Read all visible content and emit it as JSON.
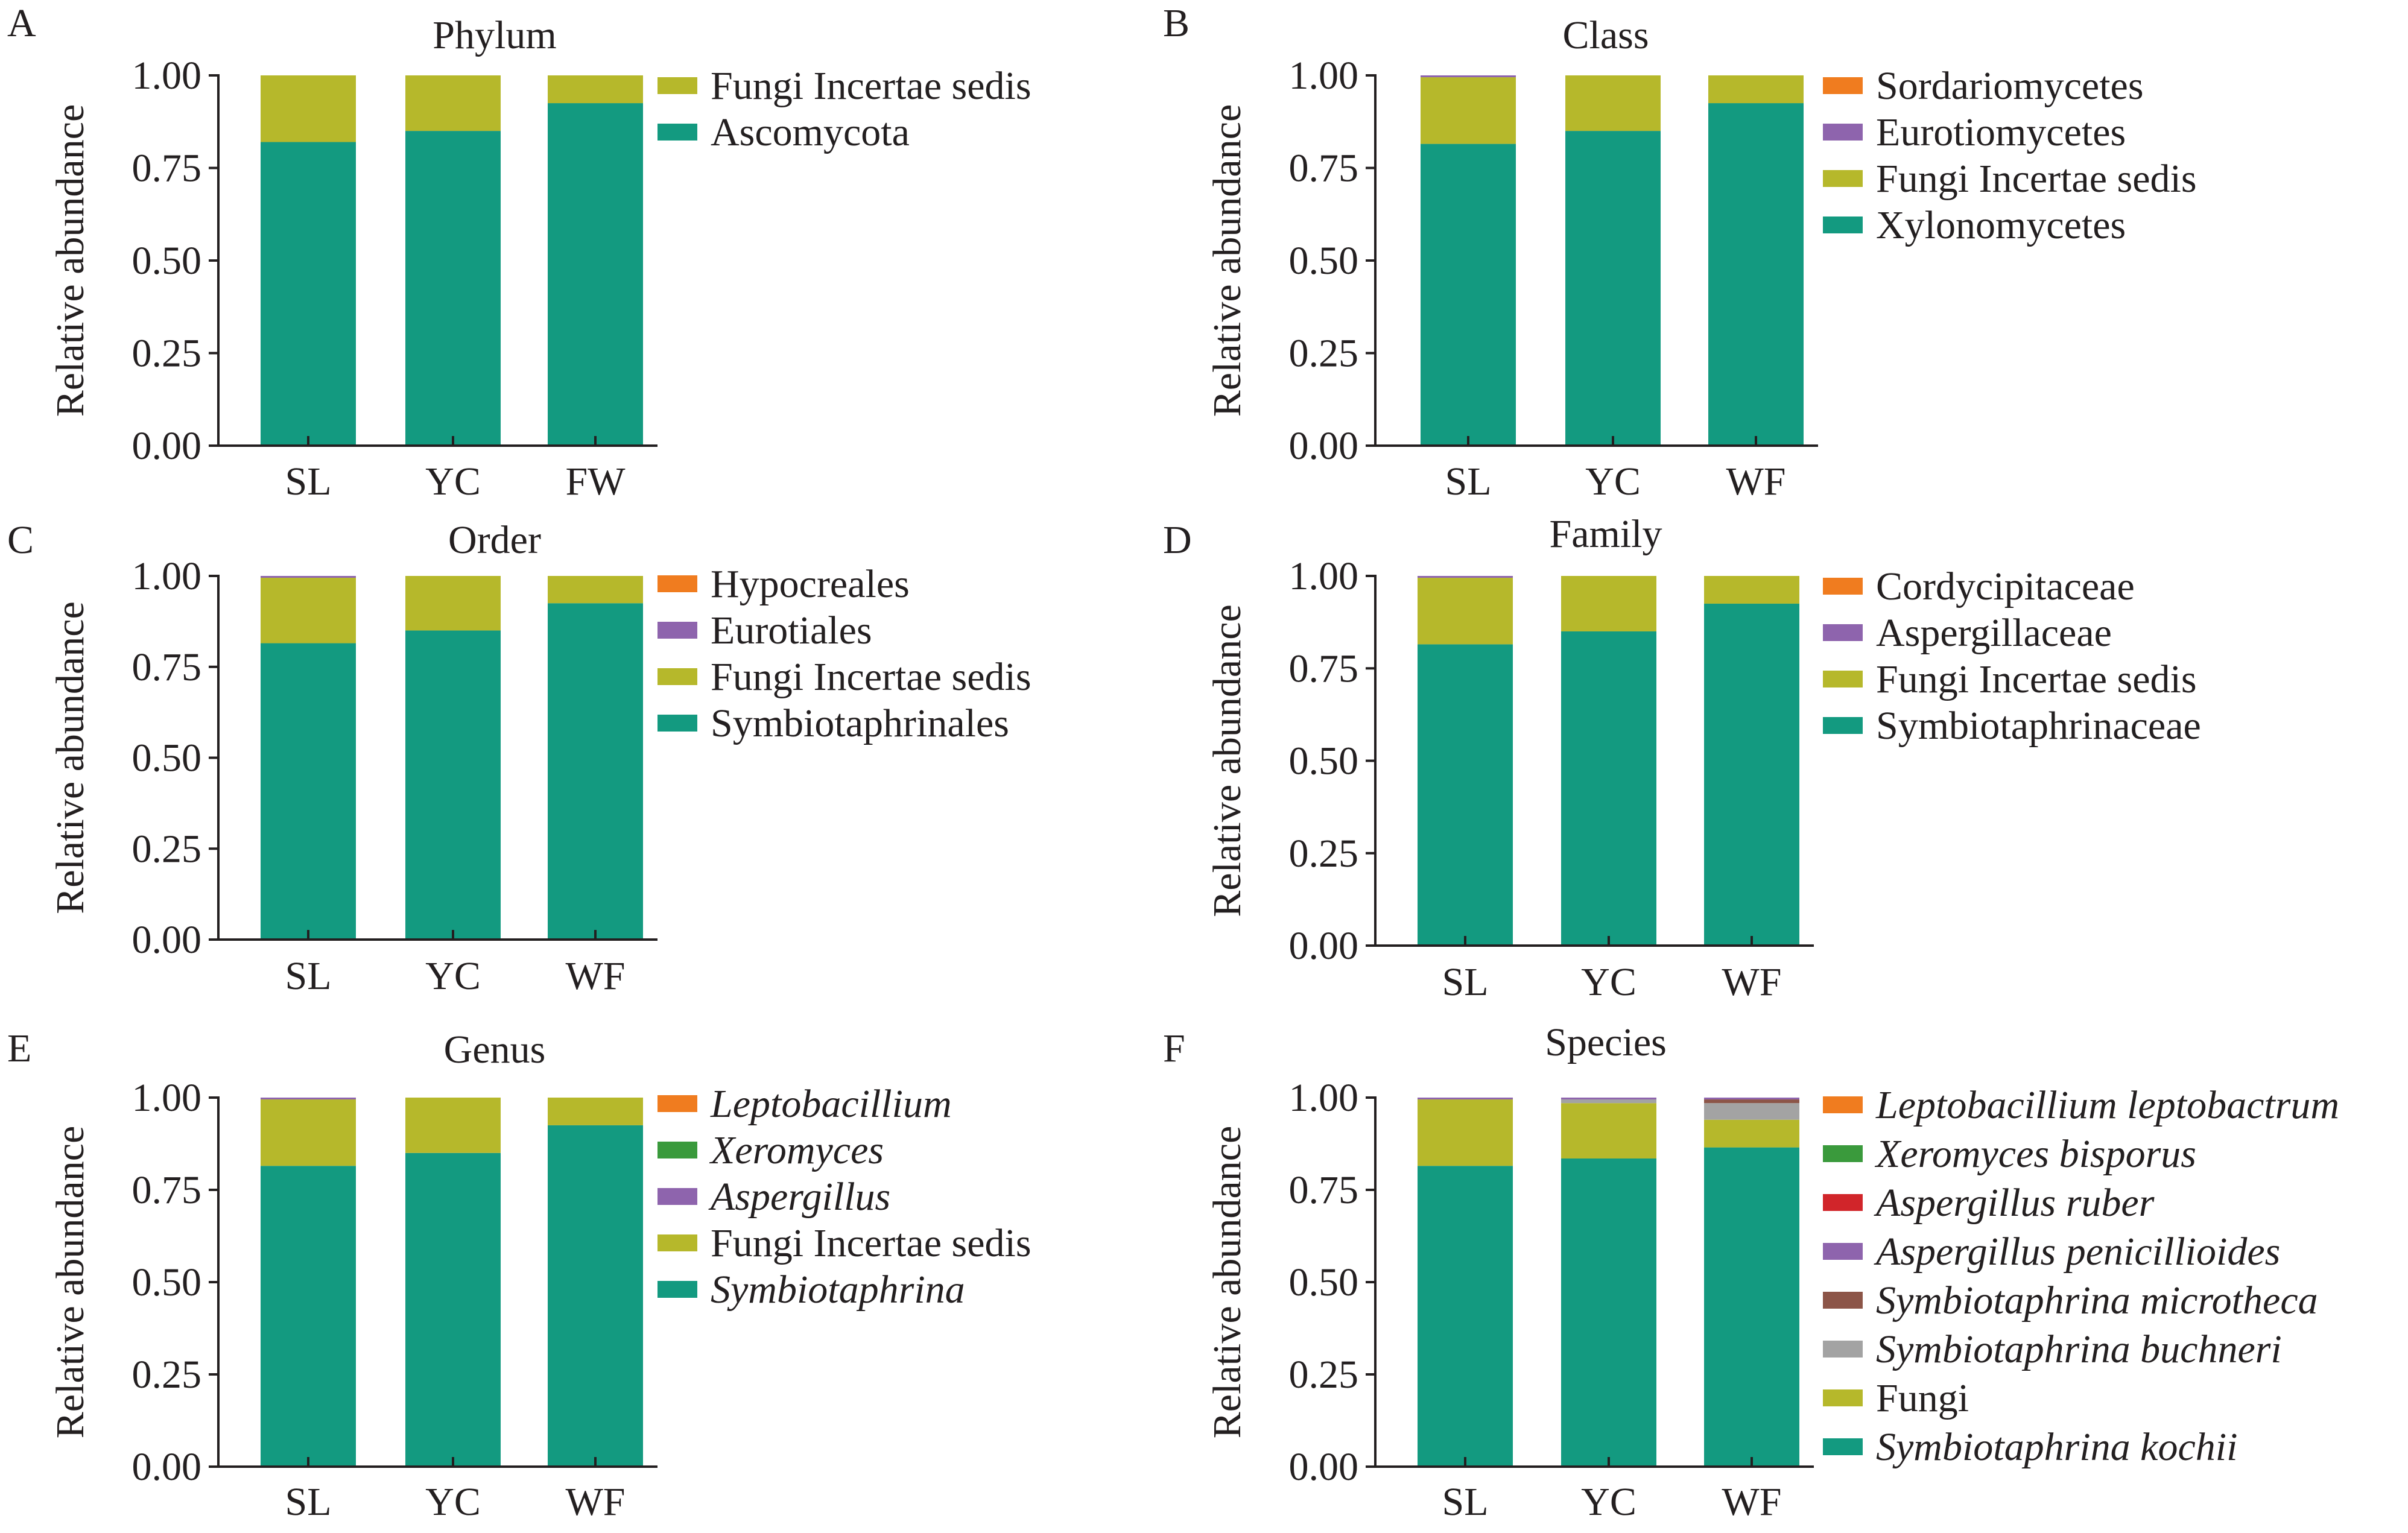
{
  "colors": {
    "teal": "#139a80",
    "olive": "#b6b82b",
    "purple": "#8e64ad",
    "orange": "#f07c1f",
    "green": "#3a9a3c",
    "red": "#d1252a",
    "brown": "#8c5548",
    "grey": "#a3a3a3"
  },
  "chart_data": [
    {
      "panel": "A",
      "type": "bar",
      "stacked": true,
      "title": "Phylum",
      "ylabel": "Relative abundance",
      "xlabel": "",
      "ylim": [
        0,
        1
      ],
      "yticks": [
        "0.00",
        "0.25",
        "0.50",
        "0.75",
        "1.00"
      ],
      "categories": [
        "SL",
        "YC",
        "FW"
      ],
      "legend_position": "right",
      "series": [
        {
          "name": "Ascomycota",
          "color": "#139a80",
          "italic": false,
          "values": [
            0.82,
            0.85,
            0.925
          ]
        },
        {
          "name": "Fungi Incertae sedis",
          "color": "#b6b82b",
          "italic": false,
          "values": [
            0.18,
            0.15,
            0.075
          ]
        }
      ]
    },
    {
      "panel": "B",
      "type": "bar",
      "stacked": true,
      "title": "Class",
      "ylabel": "Relative abundance",
      "xlabel": "",
      "ylim": [
        0,
        1
      ],
      "yticks": [
        "0.00",
        "0.25",
        "0.50",
        "0.75",
        "1.00"
      ],
      "categories": [
        "SL",
        "YC",
        "WF"
      ],
      "legend_position": "right",
      "series": [
        {
          "name": "Xylonomycetes",
          "color": "#139a80",
          "italic": false,
          "values": [
            0.815,
            0.85,
            0.925
          ]
        },
        {
          "name": "Fungi Incertae sedis",
          "color": "#b6b82b",
          "italic": false,
          "values": [
            0.18,
            0.15,
            0.075
          ]
        },
        {
          "name": "Eurotiomycetes",
          "color": "#8e64ad",
          "italic": false,
          "values": [
            0.005,
            0.0,
            0.0
          ]
        },
        {
          "name": "Sordariomycetes",
          "color": "#f07c1f",
          "italic": false,
          "values": [
            0.0,
            0.0,
            0.0
          ]
        }
      ]
    },
    {
      "panel": "C",
      "type": "bar",
      "stacked": true,
      "title": "Order",
      "ylabel": "Relative abundance",
      "xlabel": "",
      "ylim": [
        0,
        1
      ],
      "yticks": [
        "0.00",
        "0.25",
        "0.50",
        "0.75",
        "1.00"
      ],
      "categories": [
        "SL",
        "YC",
        "WF"
      ],
      "legend_position": "right",
      "series": [
        {
          "name": "Symbiotaphrinales",
          "color": "#139a80",
          "italic": false,
          "values": [
            0.815,
            0.85,
            0.925
          ]
        },
        {
          "name": "Fungi Incertae sedis",
          "color": "#b6b82b",
          "italic": false,
          "values": [
            0.18,
            0.15,
            0.075
          ]
        },
        {
          "name": "Eurotiales",
          "color": "#8e64ad",
          "italic": false,
          "values": [
            0.005,
            0.0,
            0.0
          ]
        },
        {
          "name": "Hypocreales",
          "color": "#f07c1f",
          "italic": false,
          "values": [
            0.0,
            0.0,
            0.0
          ]
        }
      ]
    },
    {
      "panel": "D",
      "type": "bar",
      "stacked": true,
      "title": "Family",
      "ylabel": "Relative abundance",
      "xlabel": "",
      "ylim": [
        0,
        1
      ],
      "yticks": [
        "0.00",
        "0.25",
        "0.50",
        "0.75",
        "1.00"
      ],
      "categories": [
        "SL",
        "YC",
        "WF"
      ],
      "legend_position": "right",
      "series": [
        {
          "name": "Symbiotaphrinaceae",
          "color": "#139a80",
          "italic": false,
          "values": [
            0.815,
            0.85,
            0.925
          ]
        },
        {
          "name": "Fungi Incertae sedis",
          "color": "#b6b82b",
          "italic": false,
          "values": [
            0.18,
            0.15,
            0.075
          ]
        },
        {
          "name": "Aspergillaceae",
          "color": "#8e64ad",
          "italic": false,
          "values": [
            0.005,
            0.0,
            0.0
          ]
        },
        {
          "name": "Cordycipitaceae",
          "color": "#f07c1f",
          "italic": false,
          "values": [
            0.0,
            0.0,
            0.0
          ]
        }
      ]
    },
    {
      "panel": "E",
      "type": "bar",
      "stacked": true,
      "title": "Genus",
      "ylabel": "Relative abundance",
      "xlabel": "",
      "ylim": [
        0,
        1
      ],
      "yticks": [
        "0.00",
        "0.25",
        "0.50",
        "0.75",
        "1.00"
      ],
      "categories": [
        "SL",
        "YC",
        "WF"
      ],
      "legend_position": "right",
      "series": [
        {
          "name": "Symbiotaphrina",
          "color": "#139a80",
          "italic": true,
          "values": [
            0.815,
            0.85,
            0.925
          ]
        },
        {
          "name": "Fungi Incertae sedis",
          "color": "#b6b82b",
          "italic": false,
          "values": [
            0.18,
            0.15,
            0.075
          ]
        },
        {
          "name": "Aspergillus",
          "color": "#8e64ad",
          "italic": true,
          "values": [
            0.005,
            0.0,
            0.0
          ]
        },
        {
          "name": "Xeromyces",
          "color": "#3a9a3c",
          "italic": true,
          "values": [
            0.0,
            0.0,
            0.0
          ]
        },
        {
          "name": "Leptobacillium",
          "color": "#f07c1f",
          "italic": true,
          "values": [
            0.0,
            0.0,
            0.0
          ]
        }
      ]
    },
    {
      "panel": "F",
      "type": "bar",
      "stacked": true,
      "title": "Species",
      "ylabel": "Relative abundance",
      "xlabel": "",
      "ylim": [
        0,
        1
      ],
      "yticks": [
        "0.00",
        "0.25",
        "0.50",
        "0.75",
        "1.00"
      ],
      "categories": [
        "SL",
        "YC",
        "WF"
      ],
      "legend_position": "right",
      "series": [
        {
          "name": "Symbiotaphrina kochii",
          "color": "#139a80",
          "italic": true,
          "values": [
            0.815,
            0.835,
            0.865
          ]
        },
        {
          "name": "Fungi",
          "color": "#b6b82b",
          "italic": false,
          "values": [
            0.18,
            0.15,
            0.075
          ]
        },
        {
          "name": "Symbiotaphrina buchneri",
          "color": "#a3a3a3",
          "italic": true,
          "values": [
            0.0,
            0.01,
            0.045
          ]
        },
        {
          "name": "Symbiotaphrina microtheca",
          "color": "#8c5548",
          "italic": true,
          "values": [
            0.0,
            0.0,
            0.01
          ]
        },
        {
          "name": "Aspergillus penicillioides",
          "color": "#8e64ad",
          "italic": true,
          "values": [
            0.005,
            0.005,
            0.005
          ]
        },
        {
          "name": "Aspergillus ruber",
          "color": "#d1252a",
          "italic": true,
          "values": [
            0.0,
            0.0,
            0.0
          ]
        },
        {
          "name": "Xeromyces bisporus",
          "color": "#3a9a3c",
          "italic": true,
          "values": [
            0.0,
            0.0,
            0.0
          ]
        },
        {
          "name": "Leptobacillium leptobactrum",
          "color": "#f07c1f",
          "italic": true,
          "values": [
            0.0,
            0.0,
            0.0
          ]
        }
      ]
    }
  ]
}
